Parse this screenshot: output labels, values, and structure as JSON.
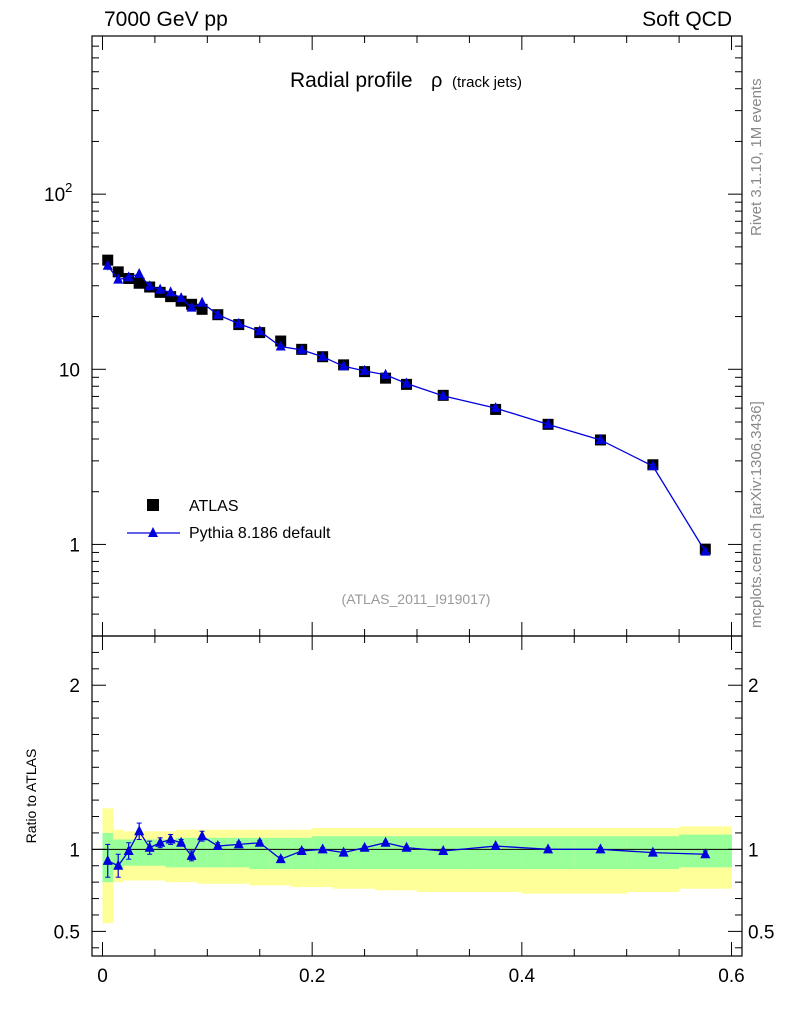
{
  "header": {
    "left": "7000 GeV pp",
    "right": "Soft QCD"
  },
  "side": {
    "top": "Rivet 3.1.10,  1M events",
    "bottom": "mcplots.cern.ch [arXiv:1306.3436]"
  },
  "colors": {
    "data": "#000000",
    "mc": "#0000dd",
    "band_inner": "#99ff99",
    "band_outer": "#ffff99",
    "watermark": "#999999"
  },
  "chart_data": {
    "type": "scatter",
    "title": "Radial profile",
    "title_symbol": "ρ",
    "title_suffix": "(track jets)",
    "analysis_tag": "(ATLAS_2011_I919017)",
    "xlabel": "",
    "ylabel": "",
    "ratio_ylabel": "Ratio to ATLAS",
    "xlim": [
      -0.01,
      0.61
    ],
    "ylim": [
      0.3,
      800
    ],
    "ratio_ylim": [
      0.35,
      2.3
    ],
    "x_tick_labels": [
      {
        "value": 0,
        "label": "0"
      },
      {
        "value": 0.2,
        "label": "0.2"
      },
      {
        "value": 0.4,
        "label": "0.4"
      },
      {
        "value": 0.6,
        "label": "0.6"
      }
    ],
    "y_tick_labels": [
      {
        "value": 1,
        "label": "1"
      },
      {
        "value": 10,
        "label": "10"
      },
      {
        "value": 100,
        "label": "10",
        "sup": "2"
      }
    ],
    "ratio_tick_labels": [
      {
        "value": 0.5,
        "label": "0.5"
      },
      {
        "value": 1,
        "label": "1"
      },
      {
        "value": 2,
        "label": "2"
      }
    ],
    "legend": [
      {
        "name": "ATLAS",
        "marker": "square"
      },
      {
        "name": "Pythia 8.186 default",
        "marker": "triangle"
      }
    ],
    "x": [
      0.005,
      0.015,
      0.025,
      0.035,
      0.045,
      0.055,
      0.065,
      0.075,
      0.085,
      0.095,
      0.11,
      0.13,
      0.15,
      0.17,
      0.19,
      0.21,
      0.23,
      0.25,
      0.27,
      0.29,
      0.325,
      0.375,
      0.425,
      0.475,
      0.525,
      0.575
    ],
    "series": [
      {
        "name": "ATLAS",
        "values": [
          42,
          36,
          33,
          31,
          29.5,
          27.5,
          26,
          24.5,
          23.5,
          22,
          20.5,
          18,
          16.2,
          14.5,
          13,
          11.8,
          10.6,
          9.7,
          8.9,
          8.2,
          7.1,
          5.9,
          4.85,
          3.95,
          2.85,
          0.94
        ]
      },
      {
        "name": "Pythia 8.186 default",
        "values": [
          39,
          32.5,
          33.5,
          35,
          29.8,
          28.5,
          27.5,
          25.5,
          22.5,
          24,
          20.5,
          18.2,
          16.5,
          13.5,
          12.9,
          11.8,
          10.4,
          9.8,
          9.3,
          8.3,
          7.05,
          6.0,
          4.85,
          3.95,
          2.8,
          0.91
        ],
        "errors": [
          2.2,
          1.3,
          1.0,
          1.0,
          0.7,
          0.5,
          0.5,
          0.4,
          0.4,
          0.4,
          0.3,
          0.25,
          0.2,
          0.2,
          0.15,
          0.15,
          0.1,
          0.1,
          0.1,
          0.1,
          0.08,
          0.06,
          0.05,
          0.04,
          0.04,
          0.02
        ]
      }
    ],
    "ratio": {
      "values": [
        0.93,
        0.9,
        0.99,
        1.11,
        1.01,
        1.04,
        1.06,
        1.04,
        0.96,
        1.08,
        1.02,
        1.03,
        1.04,
        0.94,
        0.99,
        1.0,
        0.98,
        1.01,
        1.04,
        1.01,
        0.99,
        1.02,
        1.0,
        1.0,
        0.98,
        0.97
      ],
      "errors": [
        0.1,
        0.07,
        0.05,
        0.05,
        0.04,
        0.03,
        0.03,
        0.02,
        0.03,
        0.03,
        0.02,
        0.015,
        0.015,
        0.015,
        0.015,
        0.01,
        0.01,
        0.01,
        0.01,
        0.01,
        0.01,
        0.01,
        0.01,
        0.01,
        0.01,
        0.02
      ],
      "band_edges": [
        0,
        0.01,
        0.02,
        0.03,
        0.04,
        0.05,
        0.06,
        0.07,
        0.08,
        0.09,
        0.1,
        0.12,
        0.14,
        0.16,
        0.18,
        0.2,
        0.22,
        0.24,
        0.26,
        0.28,
        0.3,
        0.35,
        0.4,
        0.45,
        0.5,
        0.55,
        0.6
      ],
      "inner_lo": [
        0.8,
        0.88,
        0.9,
        0.9,
        0.9,
        0.9,
        0.89,
        0.89,
        0.89,
        0.89,
        0.89,
        0.89,
        0.88,
        0.88,
        0.88,
        0.88,
        0.88,
        0.88,
        0.88,
        0.88,
        0.88,
        0.88,
        0.88,
        0.88,
        0.88,
        0.89
      ],
      "inner_hi": [
        1.1,
        1.06,
        1.06,
        1.06,
        1.06,
        1.06,
        1.06,
        1.07,
        1.07,
        1.07,
        1.07,
        1.07,
        1.07,
        1.07,
        1.07,
        1.08,
        1.08,
        1.08,
        1.08,
        1.08,
        1.08,
        1.08,
        1.08,
        1.08,
        1.08,
        1.09
      ],
      "outer_lo": [
        0.55,
        0.8,
        0.81,
        0.81,
        0.81,
        0.81,
        0.8,
        0.8,
        0.8,
        0.79,
        0.79,
        0.79,
        0.78,
        0.78,
        0.77,
        0.77,
        0.76,
        0.76,
        0.75,
        0.75,
        0.74,
        0.74,
        0.73,
        0.73,
        0.74,
        0.76
      ],
      "outer_hi": [
        1.25,
        1.12,
        1.11,
        1.11,
        1.11,
        1.11,
        1.11,
        1.12,
        1.12,
        1.12,
        1.12,
        1.12,
        1.12,
        1.12,
        1.12,
        1.13,
        1.13,
        1.13,
        1.13,
        1.13,
        1.13,
        1.13,
        1.13,
        1.13,
        1.13,
        1.14
      ]
    }
  }
}
